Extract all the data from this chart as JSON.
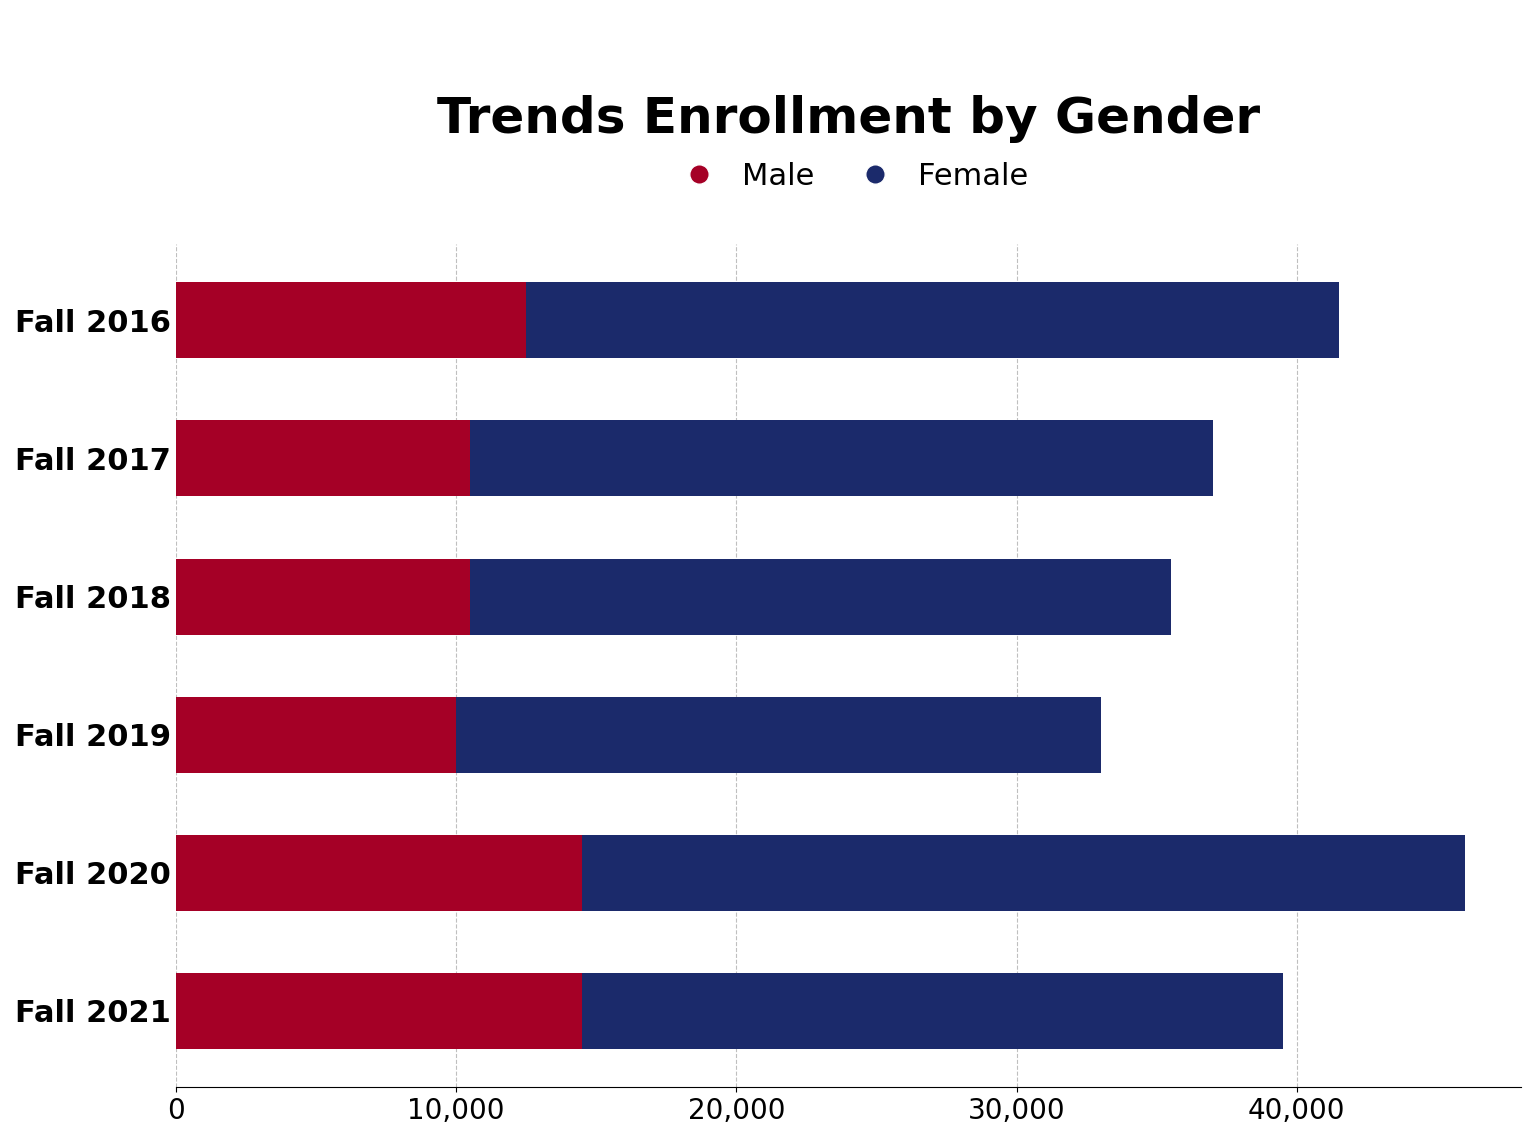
{
  "title": "Trends Enrollment by Gender",
  "categories": [
    "Fall 2021",
    "Fall 2020",
    "Fall 2019",
    "Fall 2018",
    "Fall 2017",
    "Fall 2016"
  ],
  "male_values": [
    14500,
    14500,
    10000,
    10500,
    10500,
    12500
  ],
  "female_values": [
    25000,
    31500,
    23000,
    25000,
    26500,
    29000
  ],
  "male_color": "#A50026",
  "female_color": "#1B2A6B",
  "background_color": "#FFFFFF",
  "title_fontsize": 36,
  "label_fontsize": 22,
  "tick_fontsize": 20,
  "legend_fontsize": 22,
  "xlim": [
    0,
    48000
  ],
  "xticks": [
    0,
    10000,
    20000,
    30000,
    40000
  ],
  "xlabel": "",
  "ylabel": ""
}
